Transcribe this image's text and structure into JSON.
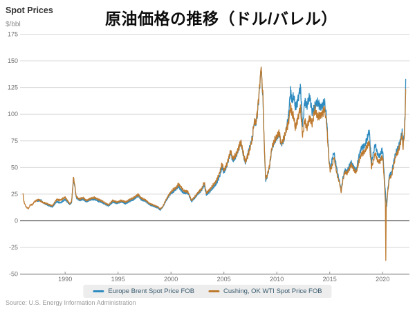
{
  "header": {
    "label": "Spot Prices",
    "unit": "$/bbl"
  },
  "title": "原油価格の推移（ドル/バレル）",
  "source": "Source: U.S. Energy Information Administration",
  "chart_data": {
    "type": "line",
    "title": "原油価格の推移（ドル/バレル）",
    "ylabel": "$/bbl",
    "ylim": [
      -50,
      175
    ],
    "xlim": [
      1986,
      2022.5
    ],
    "y_ticks": [
      175,
      150,
      125,
      100,
      75,
      50,
      25,
      0,
      -25,
      -50
    ],
    "x_ticks": [
      1990,
      1995,
      2000,
      2005,
      2010,
      2015,
      2020
    ],
    "grid": true,
    "legend_position": "bottom",
    "series": [
      {
        "name": "Europe Brent Spot Price FOB",
        "color": "#2e8bc0",
        "keypoints": [
          [
            1987.4,
            18.5
          ],
          [
            1987.7,
            19.5
          ],
          [
            1987.9,
            17
          ],
          [
            1988.3,
            15
          ],
          [
            1988.8,
            13
          ],
          [
            1989.2,
            18
          ],
          [
            1989.6,
            17
          ],
          [
            1990.0,
            20
          ],
          [
            1990.44,
            15.5
          ],
          [
            1990.6,
            17
          ],
          [
            1990.72,
            30
          ],
          [
            1990.78,
            40
          ],
          [
            1990.9,
            33
          ],
          [
            1991.04,
            22
          ],
          [
            1991.3,
            19.5
          ],
          [
            1991.7,
            20
          ],
          [
            1992.0,
            18
          ],
          [
            1992.4,
            20
          ],
          [
            1992.8,
            20
          ],
          [
            1993.2,
            18.5
          ],
          [
            1993.8,
            15.5
          ],
          [
            1994.1,
            14
          ],
          [
            1994.5,
            17.5
          ],
          [
            1994.9,
            16.5
          ],
          [
            1995.3,
            18
          ],
          [
            1995.7,
            16
          ],
          [
            1996.1,
            18.5
          ],
          [
            1996.5,
            20
          ],
          [
            1996.9,
            24
          ],
          [
            1997.2,
            19.5
          ],
          [
            1997.6,
            18.5
          ],
          [
            1998.0,
            15
          ],
          [
            1998.4,
            13.5
          ],
          [
            1998.8,
            12
          ],
          [
            1998.96,
            10
          ],
          [
            1999.2,
            12.5
          ],
          [
            1999.6,
            20
          ],
          [
            1999.9,
            25
          ],
          [
            2000.2,
            27
          ],
          [
            2000.5,
            30
          ],
          [
            2000.7,
            33
          ],
          [
            2000.9,
            29
          ],
          [
            2001.2,
            26
          ],
          [
            2001.6,
            26.5
          ],
          [
            2001.94,
            18
          ],
          [
            2002.2,
            21
          ],
          [
            2002.6,
            26
          ],
          [
            2002.9,
            29
          ],
          [
            2003.14,
            33.5
          ],
          [
            2003.34,
            24.5
          ],
          [
            2003.8,
            29
          ],
          [
            2004.2,
            33.5
          ],
          [
            2004.6,
            42
          ],
          [
            2004.82,
            50
          ],
          [
            2005.0,
            45
          ],
          [
            2005.3,
            53
          ],
          [
            2005.64,
            64
          ],
          [
            2005.84,
            56
          ],
          [
            2006.2,
            62
          ],
          [
            2006.6,
            74
          ],
          [
            2006.9,
            59
          ],
          [
            2007.04,
            54
          ],
          [
            2007.4,
            68
          ],
          [
            2007.7,
            78
          ],
          [
            2007.84,
            92
          ],
          [
            2008.0,
            91
          ],
          [
            2008.14,
            99
          ],
          [
            2008.34,
            120
          ],
          [
            2008.52,
            144
          ],
          [
            2008.7,
            112
          ],
          [
            2008.8,
            75
          ],
          [
            2008.94,
            38
          ],
          [
            2009.1,
            42
          ],
          [
            2009.3,
            50
          ],
          [
            2009.54,
            68
          ],
          [
            2009.8,
            75
          ],
          [
            2010.0,
            78
          ],
          [
            2010.24,
            82
          ],
          [
            2010.4,
            71
          ],
          [
            2010.7,
            77
          ],
          [
            2010.94,
            88
          ],
          [
            2011.1,
            98
          ],
          [
            2011.3,
            123
          ],
          [
            2011.44,
            112
          ],
          [
            2011.6,
            117
          ],
          [
            2011.74,
            107
          ],
          [
            2011.9,
            110
          ],
          [
            2012.1,
            119
          ],
          [
            2012.24,
            125
          ],
          [
            2012.44,
            89
          ],
          [
            2012.64,
            113
          ],
          [
            2012.84,
            108
          ],
          [
            2013.1,
            116
          ],
          [
            2013.34,
            102
          ],
          [
            2013.6,
            108
          ],
          [
            2013.84,
            111
          ],
          [
            2014.1,
            107
          ],
          [
            2014.34,
            108
          ],
          [
            2014.5,
            112
          ],
          [
            2014.7,
            97
          ],
          [
            2014.94,
            57
          ],
          [
            2015.04,
            48
          ],
          [
            2015.24,
            58
          ],
          [
            2015.4,
            64
          ],
          [
            2015.7,
            47
          ],
          [
            2015.94,
            36
          ],
          [
            2016.08,
            28
          ],
          [
            2016.24,
            40
          ],
          [
            2016.44,
            48
          ],
          [
            2016.64,
            46
          ],
          [
            2016.84,
            51
          ],
          [
            2017.04,
            55
          ],
          [
            2017.24,
            51
          ],
          [
            2017.5,
            47
          ],
          [
            2017.8,
            62
          ],
          [
            2018.0,
            69
          ],
          [
            2018.3,
            70
          ],
          [
            2018.54,
            77
          ],
          [
            2018.74,
            85
          ],
          [
            2018.94,
            55
          ],
          [
            2019.04,
            59
          ],
          [
            2019.3,
            72
          ],
          [
            2019.54,
            62
          ],
          [
            2019.74,
            60
          ],
          [
            2019.94,
            67
          ],
          [
            2020.04,
            62
          ],
          [
            2020.2,
            35
          ],
          [
            2020.3,
            22
          ],
          [
            2020.38,
            13
          ],
          [
            2020.5,
            30
          ],
          [
            2020.64,
            43
          ],
          [
            2020.84,
            45
          ],
          [
            2021.04,
            55
          ],
          [
            2021.24,
            64
          ],
          [
            2021.44,
            67
          ],
          [
            2021.64,
            74
          ],
          [
            2021.84,
            84
          ],
          [
            2021.92,
            71
          ],
          [
            2022.04,
            82
          ],
          [
            2022.12,
            98
          ],
          [
            2022.18,
            133
          ]
        ]
      },
      {
        "name": "Cushing, OK WTI Spot Price FOB",
        "color": "#bd7a2f",
        "keypoints": [
          [
            1986.02,
            26
          ],
          [
            1986.1,
            18
          ],
          [
            1986.3,
            13
          ],
          [
            1986.54,
            11.5
          ],
          [
            1986.7,
            15
          ],
          [
            1986.9,
            15
          ],
          [
            1987.1,
            18
          ],
          [
            1987.5,
            20
          ],
          [
            1987.9,
            17
          ],
          [
            1988.3,
            16
          ],
          [
            1988.8,
            14
          ],
          [
            1989.2,
            20
          ],
          [
            1989.6,
            19.5
          ],
          [
            1990.0,
            22
          ],
          [
            1990.44,
            16
          ],
          [
            1990.6,
            18
          ],
          [
            1990.72,
            31
          ],
          [
            1990.78,
            41
          ],
          [
            1990.9,
            34
          ],
          [
            1991.04,
            23
          ],
          [
            1991.3,
            20.5
          ],
          [
            1991.7,
            21.5
          ],
          [
            1992.0,
            19
          ],
          [
            1992.4,
            21
          ],
          [
            1992.8,
            21.5
          ],
          [
            1993.2,
            20
          ],
          [
            1993.8,
            16.5
          ],
          [
            1994.1,
            15
          ],
          [
            1994.5,
            19
          ],
          [
            1994.9,
            17.5
          ],
          [
            1995.3,
            19
          ],
          [
            1995.7,
            17.5
          ],
          [
            1996.1,
            20
          ],
          [
            1996.5,
            21.5
          ],
          [
            1996.9,
            25
          ],
          [
            1997.2,
            21
          ],
          [
            1997.6,
            19.5
          ],
          [
            1998.0,
            16
          ],
          [
            1998.4,
            14.5
          ],
          [
            1998.8,
            13
          ],
          [
            1998.96,
            11
          ],
          [
            1999.2,
            13
          ],
          [
            1999.6,
            21
          ],
          [
            1999.9,
            26
          ],
          [
            2000.2,
            29
          ],
          [
            2000.5,
            31
          ],
          [
            2000.7,
            35
          ],
          [
            2000.9,
            32
          ],
          [
            2001.2,
            28
          ],
          [
            2001.6,
            27.5
          ],
          [
            2001.94,
            19
          ],
          [
            2002.2,
            22
          ],
          [
            2002.6,
            27
          ],
          [
            2002.9,
            30
          ],
          [
            2003.14,
            36
          ],
          [
            2003.34,
            26
          ],
          [
            2003.8,
            31
          ],
          [
            2004.2,
            36
          ],
          [
            2004.6,
            45
          ],
          [
            2004.82,
            53
          ],
          [
            2005.0,
            47
          ],
          [
            2005.3,
            54
          ],
          [
            2005.64,
            65
          ],
          [
            2005.84,
            58
          ],
          [
            2006.2,
            63
          ],
          [
            2006.6,
            74.5
          ],
          [
            2006.9,
            60
          ],
          [
            2007.04,
            55
          ],
          [
            2007.4,
            66
          ],
          [
            2007.7,
            77
          ],
          [
            2007.84,
            92
          ],
          [
            2008.0,
            92
          ],
          [
            2008.14,
            100
          ],
          [
            2008.34,
            122
          ],
          [
            2008.52,
            145
          ],
          [
            2008.7,
            114
          ],
          [
            2008.8,
            76
          ],
          [
            2008.94,
            40
          ],
          [
            2009.1,
            43
          ],
          [
            2009.3,
            51
          ],
          [
            2009.54,
            69
          ],
          [
            2009.8,
            76
          ],
          [
            2010.0,
            79
          ],
          [
            2010.24,
            83
          ],
          [
            2010.4,
            72
          ],
          [
            2010.7,
            78
          ],
          [
            2010.94,
            87
          ],
          [
            2011.1,
            92
          ],
          [
            2011.3,
            108
          ],
          [
            2011.44,
            100
          ],
          [
            2011.6,
            97
          ],
          [
            2011.74,
            87
          ],
          [
            2011.9,
            93
          ],
          [
            2012.1,
            101
          ],
          [
            2012.24,
            106
          ],
          [
            2012.44,
            79
          ],
          [
            2012.64,
            95
          ],
          [
            2012.84,
            87
          ],
          [
            2013.1,
            96
          ],
          [
            2013.34,
            91
          ],
          [
            2013.6,
            105
          ],
          [
            2013.84,
            97
          ],
          [
            2014.1,
            99
          ],
          [
            2014.34,
            101
          ],
          [
            2014.5,
            105
          ],
          [
            2014.7,
            92
          ],
          [
            2014.94,
            55
          ],
          [
            2015.04,
            47
          ],
          [
            2015.24,
            52
          ],
          [
            2015.4,
            60
          ],
          [
            2015.7,
            43
          ],
          [
            2015.94,
            35
          ],
          [
            2016.08,
            27
          ],
          [
            2016.24,
            38
          ],
          [
            2016.44,
            46
          ],
          [
            2016.64,
            44.5
          ],
          [
            2016.84,
            48
          ],
          [
            2017.04,
            53
          ],
          [
            2017.24,
            49
          ],
          [
            2017.5,
            45
          ],
          [
            2017.8,
            57
          ],
          [
            2018.0,
            63
          ],
          [
            2018.3,
            64.5
          ],
          [
            2018.54,
            70
          ],
          [
            2018.74,
            74
          ],
          [
            2018.94,
            50
          ],
          [
            2019.04,
            53
          ],
          [
            2019.3,
            63.5
          ],
          [
            2019.54,
            56
          ],
          [
            2019.74,
            55
          ],
          [
            2019.94,
            60
          ],
          [
            2020.04,
            57
          ],
          [
            2020.2,
            30
          ],
          [
            2020.26,
            15
          ],
          [
            2020.3,
            -37
          ],
          [
            2020.34,
            14
          ],
          [
            2020.5,
            28
          ],
          [
            2020.64,
            40
          ],
          [
            2020.84,
            42
          ],
          [
            2021.04,
            52
          ],
          [
            2021.24,
            61
          ],
          [
            2021.44,
            64
          ],
          [
            2021.64,
            71
          ],
          [
            2021.84,
            81
          ],
          [
            2021.92,
            68
          ],
          [
            2022.04,
            79
          ],
          [
            2022.12,
            95
          ],
          [
            2022.18,
            124
          ]
        ]
      }
    ]
  }
}
